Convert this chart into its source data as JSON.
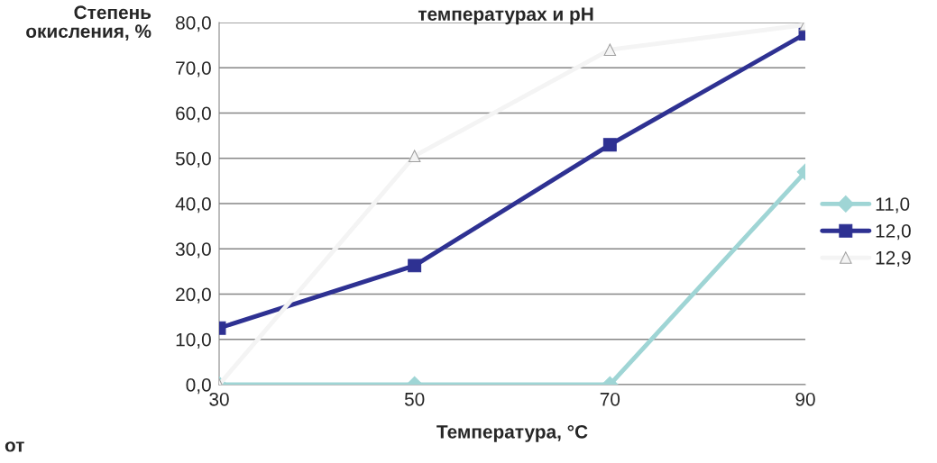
{
  "chart_data": {
    "type": "line",
    "title": "температурах и pH",
    "xlabel": "Температура, °C",
    "ylabel": "Степень\nокисления, %",
    "annotations": [
      "от"
    ],
    "categories": [
      "30",
      "50",
      "70",
      "90"
    ],
    "series": [
      {
        "name": "11,0",
        "color": "#9fd5d5",
        "marker": "diamond",
        "values": [
          0,
          0,
          0,
          47
        ]
      },
      {
        "name": "12,0",
        "color": "#2e3192",
        "marker": "square",
        "values": [
          12.5,
          26.3,
          53,
          77.5
        ]
      },
      {
        "name": "12,9",
        "color": "#f4f4f4",
        "marker": "triangle",
        "values": [
          0,
          50.5,
          74,
          79.5
        ]
      }
    ],
    "ylim": [
      0,
      80
    ],
    "yticks": [
      {
        "value": 0,
        "label": "0,0"
      },
      {
        "value": 10,
        "label": "10,0"
      },
      {
        "value": 20,
        "label": "20,0"
      },
      {
        "value": 30,
        "label": "30,0"
      },
      {
        "value": 40,
        "label": "40,0"
      },
      {
        "value": 50,
        "label": "50,0"
      },
      {
        "value": 60,
        "label": "60,0"
      },
      {
        "value": 70,
        "label": "70,0"
      },
      {
        "value": 80,
        "label": "80,0"
      }
    ],
    "grid": "y",
    "legend": "right",
    "line_style": "solid"
  }
}
